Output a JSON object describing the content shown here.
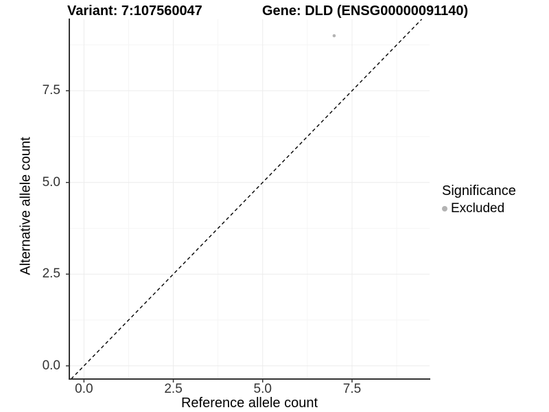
{
  "chart_data": {
    "type": "scatter",
    "titles": [
      "Variant: 7:107560047",
      "Gene: DLD (ENSG00000091140)"
    ],
    "xlabel": "Reference allele count",
    "ylabel": "Alternative allele count",
    "xlim": [
      -0.41,
      9.67
    ],
    "ylim": [
      -0.36,
      9.45
    ],
    "x_ticks": {
      "values": [
        0,
        2.5,
        5,
        7.5
      ],
      "labels": [
        "0.0",
        "2.5",
        "5.0",
        "7.5"
      ]
    },
    "y_ticks": {
      "values": [
        0,
        2.5,
        5,
        7.5
      ],
      "labels": [
        "0.0",
        "2.5",
        "5.0",
        "7.5"
      ]
    },
    "minor_tick_values": [
      1.25,
      3.75,
      6.25,
      8.75
    ],
    "grid": "major and minor, very light gray, on white panel",
    "points": [
      {
        "x": 7,
        "y": 9,
        "series": "Excluded"
      }
    ],
    "reference_line": {
      "type": "identity y=x",
      "style": "dashed",
      "color": "#000000"
    },
    "legend": {
      "title": "Significance",
      "position": "right",
      "entries": [
        {
          "label": "Excluded",
          "color": "#b3b3b3"
        }
      ]
    },
    "styles": {
      "point_color": "#b3b3b3",
      "point_radius_px": 2.3,
      "grid_major_color": "#ececec",
      "grid_minor_color": "#f5f5f5",
      "axis_color": "#333333",
      "tick_label_color": "#333333"
    }
  }
}
